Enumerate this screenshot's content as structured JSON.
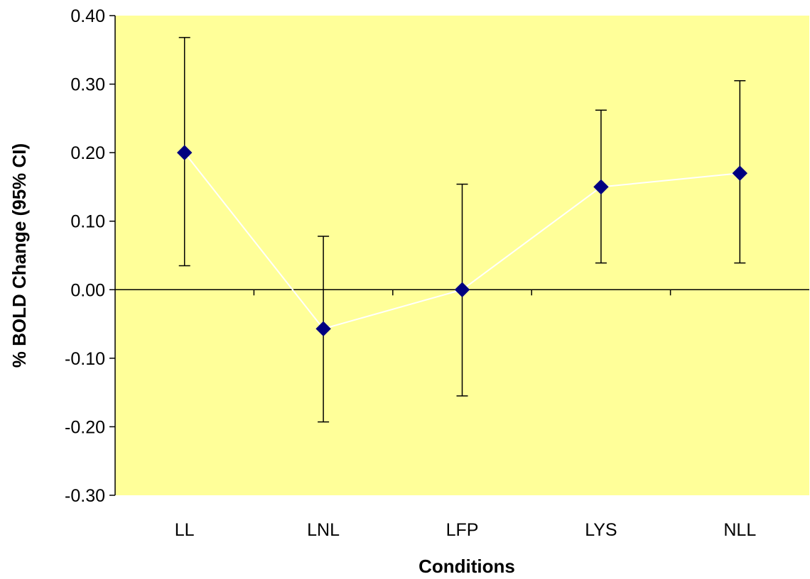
{
  "chart_data": {
    "type": "line",
    "title": "",
    "xlabel": "Conditions",
    "ylabel": "% BOLD Change (95% CI)",
    "categories": [
      "LL",
      "LNL",
      "LFP",
      "LYS",
      "NLL"
    ],
    "series": [
      {
        "values": [
          0.2,
          -0.057,
          0.0,
          0.15,
          0.17
        ],
        "ci_lower": [
          0.035,
          -0.193,
          -0.155,
          0.039,
          0.039
        ],
        "ci_upper": [
          0.368,
          0.078,
          0.154,
          0.262,
          0.305
        ]
      }
    ],
    "ylim": [
      -0.3,
      0.4
    ],
    "yticks": [
      "0.40",
      "0.30",
      "0.20",
      "0.10",
      "0.00",
      "-0.10",
      "-0.20",
      "-0.30"
    ],
    "ytick_values": [
      0.4,
      0.3,
      0.2,
      0.1,
      0.0,
      -0.1,
      -0.2,
      -0.3
    ],
    "grid": false,
    "legend": "none",
    "colors": {
      "plot_background": "#ffff99",
      "marker": "#000080",
      "line": "#ffffff",
      "error_bar": "#000000",
      "axis": "#000000"
    }
  }
}
